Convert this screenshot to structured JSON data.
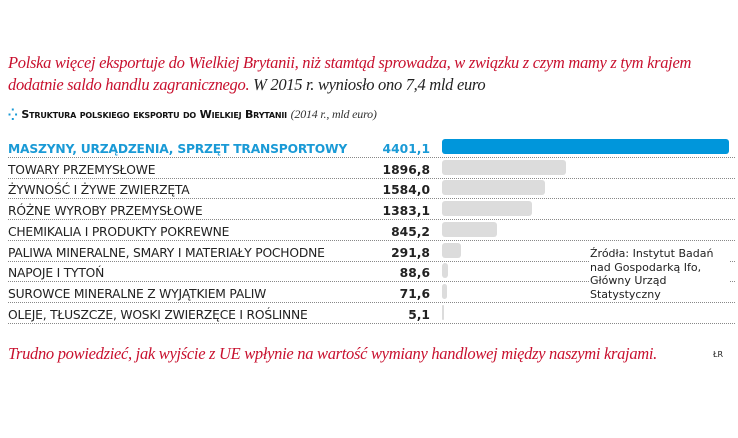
{
  "intro": {
    "red": "Polska więcej eksportuje do Wielkiej Brytanii, niż stamtąd sprowadza, w związku z czym mamy z tym krajem dodatnie saldo handlu zagranicznego.",
    "dark": "W 2015 r. wyniosło ono 7,4 mld euro"
  },
  "chart_data": {
    "type": "bar",
    "orientation": "horizontal",
    "title": "Struktura polskiego eksportu do Wielkiej Brytanii",
    "subtitle": "(2014 r., mld euro)",
    "categories": [
      "MASZYNY, URZĄDZENIA, SPRZĘT TRANSPORTOWY",
      "TOWARY PRZEMYSŁOWE",
      "ŻYWNOŚĆ I ŻYWE ZWIERZĘTA",
      "RÓŻNE WYROBY PRZEMYSŁOWE",
      "CHEMIKALIA I PRODUKTY POKREWNE",
      "PALIWA MINERALNE, SMARY I MATERIAŁY POCHODNE",
      "NAPOJE I TYTOŃ",
      "SUROWCE MINERALNE Z WYJĄTKIEM PALIW",
      "OLEJE, TŁUSZCZE, WOSKI ZWIERZĘCE I ROŚLINNE"
    ],
    "values": [
      4401.1,
      1896.8,
      1584.0,
      1383.1,
      845.2,
      291.8,
      88.6,
      71.6,
      5.1
    ],
    "value_labels": [
      "4401,1",
      "1896,8",
      "1584,0",
      "1383,1",
      "845,2",
      "291,8",
      "88,6",
      "71,6",
      "5,1"
    ],
    "highlight_index": 0,
    "colors": {
      "highlight": "#0096db",
      "bar": "#dcdcdc"
    },
    "grid": false
  },
  "source": "Źródła: Instytut Badań nad Gospodarką Ifo, Główny Urząd Statystyczny",
  "outro": "Trudno powiedzieć, jak wyjście z UE wpłynie na wartość wymiany handlowej między naszymi krajami.",
  "signature": "ŁR"
}
